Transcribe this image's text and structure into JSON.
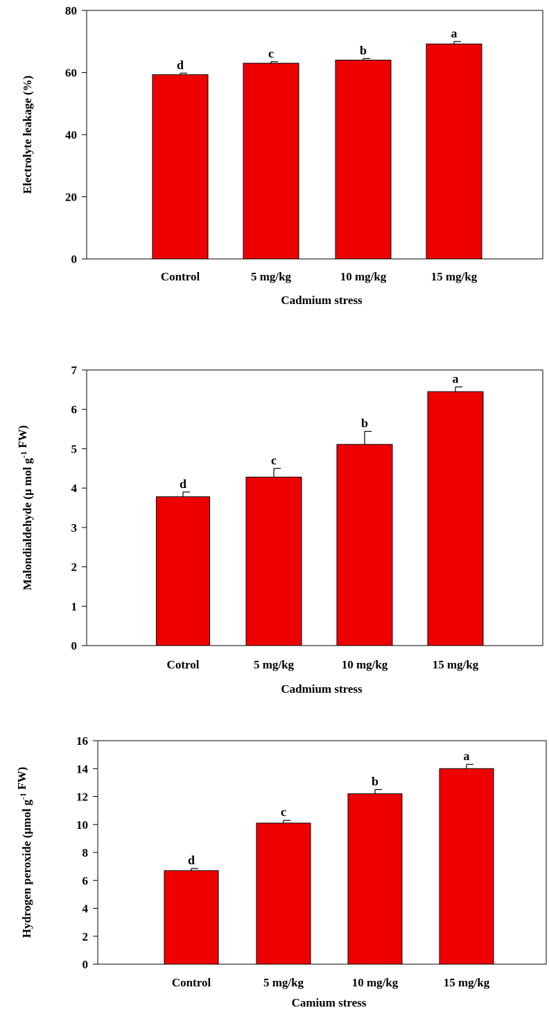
{
  "figure": {
    "panels_count": 3
  },
  "chart_data": [
    {
      "type": "bar",
      "categories": [
        "Control",
        "5 mg/kg",
        "10 mg/kg",
        "15 mg/kg"
      ],
      "values": [
        59.3,
        63.0,
        64.0,
        69.2
      ],
      "errors": [
        0.5,
        0.5,
        0.5,
        0.8
      ],
      "significance_letters": [
        "d",
        "c",
        "b",
        "a"
      ],
      "title": "",
      "xlabel": "Cadmium stress",
      "ylabel": "Electrolyte leakage (%)",
      "ylabel_parts": [
        {
          "t": "Electrolyte leakage (%)"
        }
      ],
      "ylim": [
        0,
        80
      ],
      "yticks": [
        0,
        20,
        40,
        60,
        80
      ],
      "ytick_labels": [
        "0",
        "20",
        "40",
        "60",
        "80"
      ],
      "bar_color": "#ee0000",
      "grid": false
    },
    {
      "type": "bar",
      "categories": [
        "Cotrol",
        "5 mg/kg",
        "10 mg/kg",
        "15 mg/kg"
      ],
      "values": [
        3.78,
        4.28,
        5.11,
        6.45
      ],
      "errors": [
        0.12,
        0.22,
        0.33,
        0.12
      ],
      "significance_letters": [
        "d",
        "c",
        "b",
        "a"
      ],
      "title": "",
      "xlabel": "Cadmium stress",
      "ylabel": "Malondialdehyde (μ mol g-1 FW)",
      "ylabel_parts": [
        {
          "t": "Malondialdehyde (μ mol g"
        },
        {
          "t": "-1",
          "sup": true
        },
        {
          "t": " FW)"
        }
      ],
      "ylim": [
        0,
        7
      ],
      "yticks": [
        0,
        1,
        2,
        3,
        4,
        5,
        6,
        7
      ],
      "ytick_labels": [
        "0",
        "1",
        "2",
        "3",
        "4",
        "5",
        "6",
        "7"
      ],
      "bar_color": "#ee0000",
      "grid": false
    },
    {
      "type": "bar",
      "categories": [
        "Control",
        "5 mg/kg",
        "10 mg/kg",
        "15 mg/kg"
      ],
      "values": [
        6.7,
        10.1,
        12.2,
        14.0
      ],
      "errors": [
        0.15,
        0.2,
        0.3,
        0.3
      ],
      "significance_letters": [
        "d",
        "c",
        "b",
        "a"
      ],
      "title": "",
      "xlabel": "Camium stress",
      "ylabel": "Hydrogen peroxide (μmol g-1 FW)",
      "ylabel_parts": [
        {
          "t": "Hydrogen peroxide (μmol g"
        },
        {
          "t": "-1",
          "sup": true
        },
        {
          "t": " FW)"
        }
      ],
      "ylim": [
        0,
        16
      ],
      "yticks": [
        0,
        2,
        4,
        6,
        8,
        10,
        12,
        14,
        16
      ],
      "ytick_labels": [
        "0",
        "2",
        "4",
        "6",
        "8",
        "10",
        "12",
        "14",
        "16"
      ],
      "bar_color": "#ee0000",
      "grid": false
    }
  ]
}
